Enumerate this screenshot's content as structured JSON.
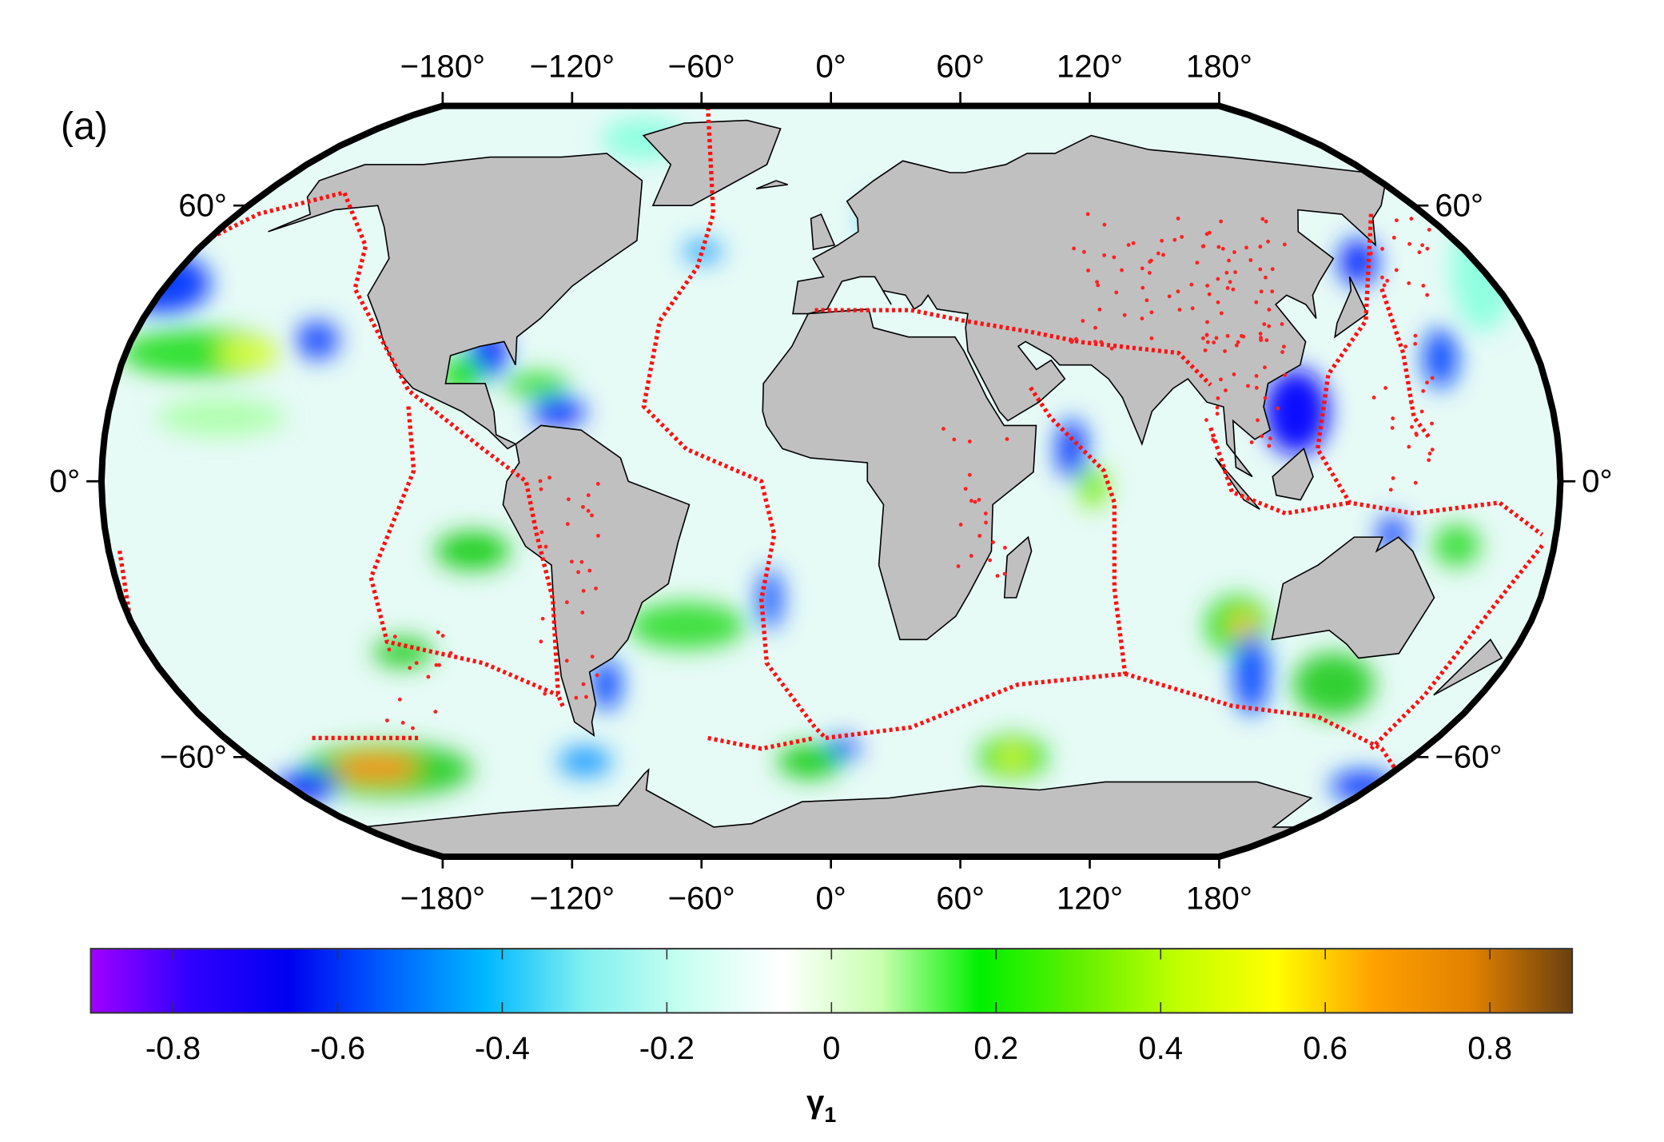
{
  "panel_label": "(a)",
  "map": {
    "lon_ticks": [
      {
        "value": -180,
        "label": "−180°"
      },
      {
        "value": -120,
        "label": "−120°"
      },
      {
        "value": -60,
        "label": "−60°"
      },
      {
        "value": 0,
        "label": "0°"
      },
      {
        "value": 60,
        "label": "60°"
      },
      {
        "value": 120,
        "label": "120°"
      },
      {
        "value": 180,
        "label": "180°"
      }
    ],
    "lat_ticks": [
      {
        "value": 60,
        "label": "60°"
      },
      {
        "value": 0,
        "label": "0°"
      },
      {
        "value": -60,
        "label": "−60°"
      }
    ]
  },
  "colorbar": {
    "range": [
      -0.9,
      0.9
    ],
    "ticks": [
      -0.8,
      -0.6,
      -0.4,
      -0.2,
      0,
      0.2,
      0.4,
      0.6,
      0.8
    ],
    "label": "γ",
    "label_subscript": "1",
    "colors": [
      "#a000ff",
      "#3000ff",
      "#0000f0",
      "#0060ff",
      "#00b8ff",
      "#80f0f0",
      "#c8fff0",
      "#ffffff",
      "#c8ffb0",
      "#00f000",
      "#60f000",
      "#c0ff00",
      "#ffff00",
      "#ffa000",
      "#e08000",
      "#6a4010"
    ]
  }
}
